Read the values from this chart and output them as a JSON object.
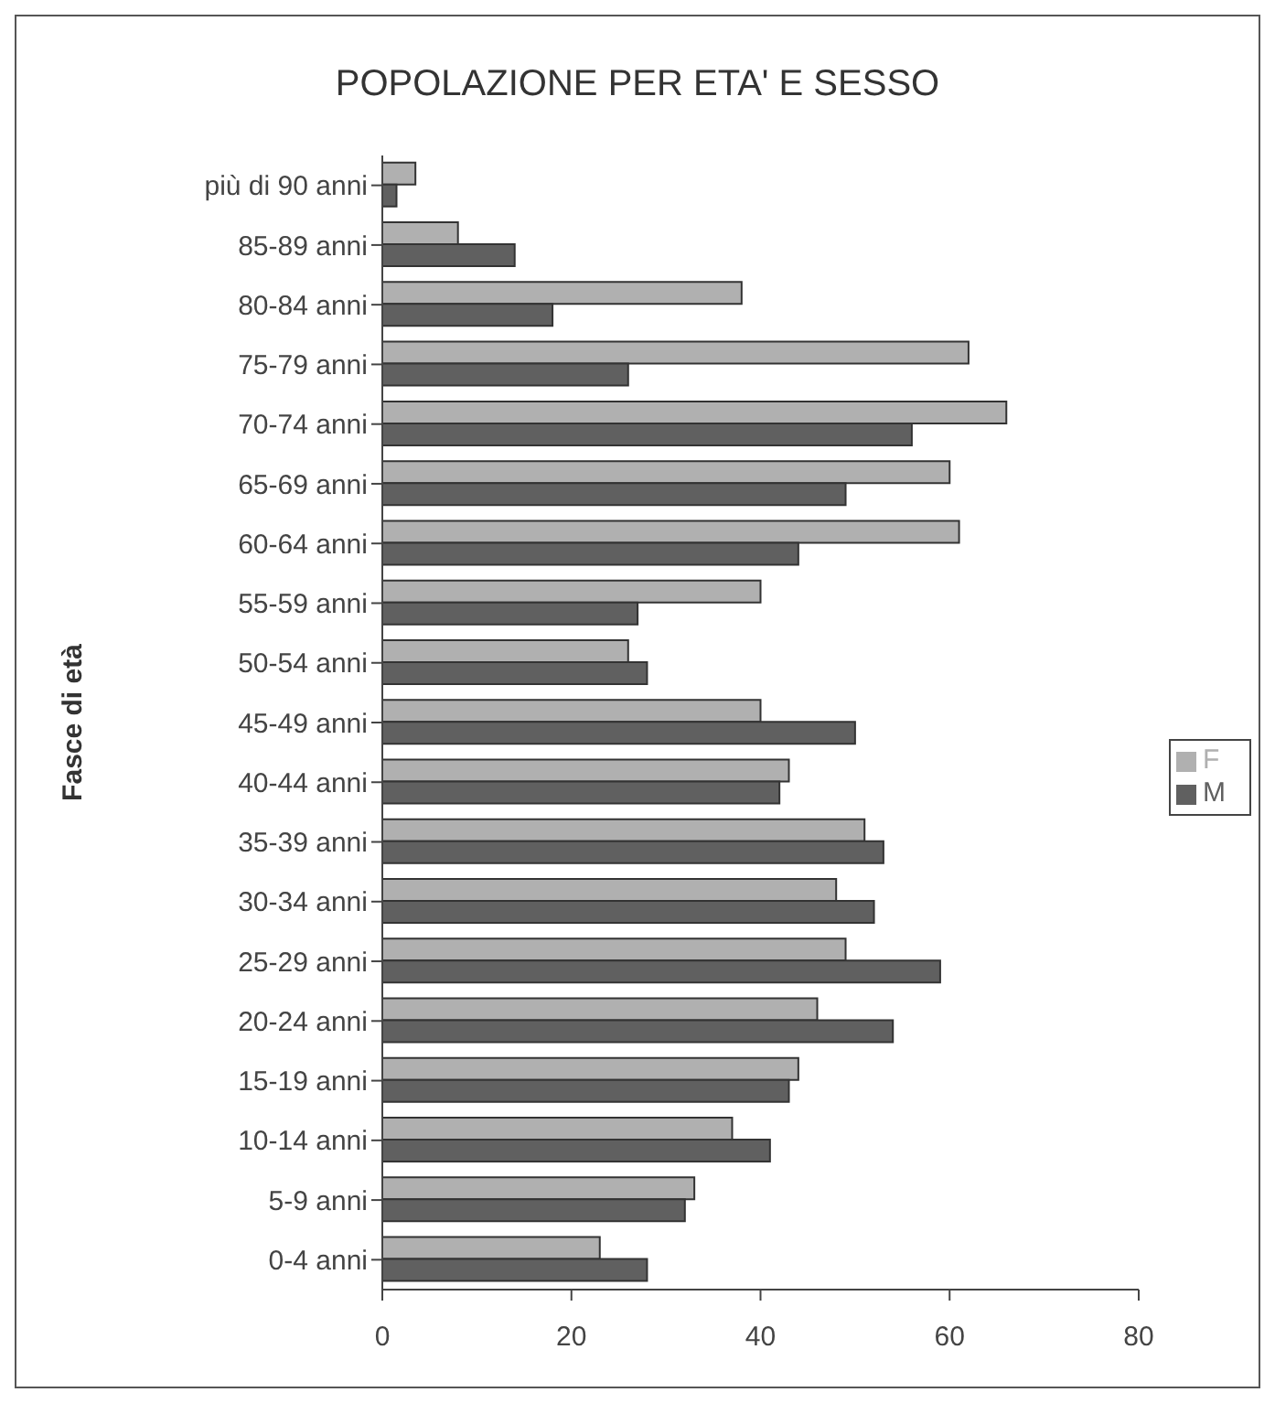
{
  "chart_data": {
    "type": "bar",
    "orientation": "horizontal",
    "title": "POPOLAZIONE PER ETA' E SESSO",
    "ylabel": "Fasce di età",
    "categories": [
      "più di 90 anni",
      "85-89 anni",
      "80-84 anni",
      "75-79 anni",
      "70-74 anni",
      "65-69 anni",
      "60-64 anni",
      "55-59 anni",
      "50-54 anni",
      "45-49 anni",
      "40-44 anni",
      "35-39 anni",
      "30-34 anni",
      "25-29 anni",
      "20-24 anni",
      "15-19 anni",
      "10-14 anni",
      "5-9 anni",
      "0-4 anni"
    ],
    "series": [
      {
        "name": "F",
        "color": "#b0b0b0",
        "values": [
          3.5,
          8,
          38,
          62,
          66,
          60,
          61,
          40,
          26,
          40,
          43,
          51,
          48,
          49,
          46,
          44,
          37,
          33,
          23
        ]
      },
      {
        "name": "M",
        "color": "#606060",
        "values": [
          1.5,
          14,
          18,
          26,
          56,
          49,
          44,
          27,
          28,
          50,
          42,
          53,
          52,
          59,
          54,
          43,
          41,
          32,
          28
        ]
      }
    ],
    "xlim": [
      0,
      80
    ],
    "xticks": [
      0,
      20,
      40,
      60,
      80
    ],
    "legend": "right",
    "grid": false
  }
}
